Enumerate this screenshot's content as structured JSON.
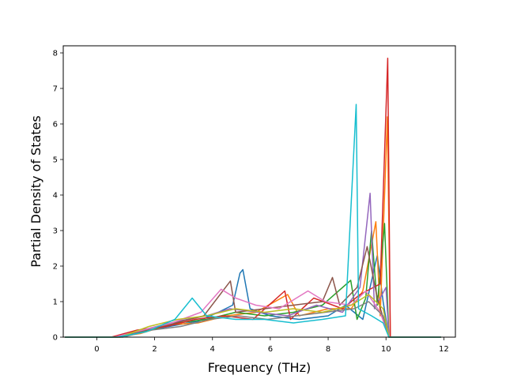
{
  "chart_data": {
    "type": "line",
    "title": "",
    "xlabel": "Frequency (THz)",
    "ylabel": "Partial Density of States",
    "xlim": [
      -1.16,
      12.4
    ],
    "ylim": [
      0,
      8.2
    ],
    "xticks": [
      0,
      2,
      4,
      6,
      8,
      10,
      12
    ],
    "yticks": [
      0,
      1,
      2,
      3,
      4,
      5,
      6,
      7,
      8
    ],
    "xtick_labels": [
      "0",
      "2",
      "4",
      "6",
      "8",
      "10",
      "12"
    ],
    "ytick_labels": [
      "0",
      "1",
      "2",
      "3",
      "4",
      "5",
      "6",
      "7",
      "8"
    ],
    "grid": false,
    "legend": "none",
    "series": [
      {
        "color": "#1f77b4",
        "points": [
          [
            -1.1,
            0
          ],
          [
            0.5,
            0
          ],
          [
            1.5,
            0.15
          ],
          [
            2.5,
            0.3
          ],
          [
            3.5,
            0.45
          ],
          [
            4.2,
            0.7
          ],
          [
            4.7,
            0.9
          ],
          [
            4.95,
            1.8
          ],
          [
            5.05,
            1.9
          ],
          [
            5.3,
            0.8
          ],
          [
            6.0,
            0.6
          ],
          [
            7.0,
            0.5
          ],
          [
            8.0,
            0.6
          ],
          [
            8.6,
            0.9
          ],
          [
            9.2,
            0.5
          ],
          [
            9.7,
            2.3
          ],
          [
            9.9,
            1.0
          ],
          [
            10.1,
            0
          ],
          [
            11.9,
            0
          ]
        ]
      },
      {
        "color": "#ff7f0e",
        "points": [
          [
            -1.1,
            0
          ],
          [
            0.6,
            0
          ],
          [
            1.5,
            0.1
          ],
          [
            2.5,
            0.35
          ],
          [
            3.5,
            0.4
          ],
          [
            4.5,
            0.6
          ],
          [
            5.5,
            0.7
          ],
          [
            6.6,
            1.2
          ],
          [
            7.0,
            0.6
          ],
          [
            8.0,
            0.8
          ],
          [
            8.8,
            0.8
          ],
          [
            9.2,
            1.3
          ],
          [
            9.65,
            3.25
          ],
          [
            9.8,
            0.6
          ],
          [
            10.05,
            6.2
          ],
          [
            10.15,
            0
          ],
          [
            11.9,
            0
          ]
        ]
      },
      {
        "color": "#2ca02c",
        "points": [
          [
            -1.1,
            0
          ],
          [
            0.7,
            0
          ],
          [
            1.8,
            0.2
          ],
          [
            2.8,
            0.4
          ],
          [
            3.8,
            0.5
          ],
          [
            4.8,
            0.7
          ],
          [
            5.8,
            0.6
          ],
          [
            6.8,
            0.7
          ],
          [
            7.8,
            0.9
          ],
          [
            8.78,
            1.6
          ],
          [
            9.0,
            0.5
          ],
          [
            9.3,
            1.1
          ],
          [
            9.5,
            3.0
          ],
          [
            9.7,
            0.9
          ],
          [
            9.95,
            3.2
          ],
          [
            10.1,
            0
          ],
          [
            11.9,
            0
          ]
        ]
      },
      {
        "color": "#d62728",
        "points": [
          [
            -1.1,
            0
          ],
          [
            0.5,
            0
          ],
          [
            1.4,
            0.2
          ],
          [
            2.4,
            0.3
          ],
          [
            3.4,
            0.5
          ],
          [
            4.4,
            0.6
          ],
          [
            5.4,
            0.5
          ],
          [
            6.5,
            1.3
          ],
          [
            6.7,
            0.5
          ],
          [
            7.5,
            1.1
          ],
          [
            8.5,
            0.8
          ],
          [
            9.1,
            1.2
          ],
          [
            9.8,
            1.5
          ],
          [
            10.06,
            7.85
          ],
          [
            10.15,
            0
          ],
          [
            11.9,
            0
          ]
        ]
      },
      {
        "color": "#9467bd",
        "points": [
          [
            -1.1,
            0
          ],
          [
            0.8,
            0
          ],
          [
            1.8,
            0.25
          ],
          [
            2.8,
            0.45
          ],
          [
            3.8,
            0.6
          ],
          [
            4.6,
            0.8
          ],
          [
            5.6,
            0.7
          ],
          [
            6.6,
            0.6
          ],
          [
            7.6,
            0.9
          ],
          [
            8.5,
            0.7
          ],
          [
            9.1,
            1.4
          ],
          [
            9.45,
            4.05
          ],
          [
            9.6,
            0.8
          ],
          [
            10.0,
            1.4
          ],
          [
            10.1,
            0
          ],
          [
            11.9,
            0
          ]
        ]
      },
      {
        "color": "#8c564b",
        "points": [
          [
            -1.1,
            0
          ],
          [
            0.7,
            0
          ],
          [
            1.7,
            0.2
          ],
          [
            2.7,
            0.4
          ],
          [
            3.7,
            0.6
          ],
          [
            4.62,
            1.58
          ],
          [
            4.8,
            0.7
          ],
          [
            5.8,
            0.8
          ],
          [
            6.8,
            0.9
          ],
          [
            7.8,
            1.0
          ],
          [
            8.15,
            1.68
          ],
          [
            8.4,
            0.9
          ],
          [
            9.0,
            1.4
          ],
          [
            9.35,
            2.55
          ],
          [
            9.7,
            1.1
          ],
          [
            10.1,
            0
          ],
          [
            11.9,
            0
          ]
        ]
      },
      {
        "color": "#e377c2",
        "points": [
          [
            -1.1,
            0
          ],
          [
            0.6,
            0
          ],
          [
            1.6,
            0.2
          ],
          [
            2.6,
            0.4
          ],
          [
            3.6,
            0.7
          ],
          [
            4.3,
            1.35
          ],
          [
            4.8,
            1.1
          ],
          [
            5.5,
            0.9
          ],
          [
            6.3,
            0.8
          ],
          [
            7.3,
            1.3
          ],
          [
            7.9,
            1.0
          ],
          [
            8.8,
            0.9
          ],
          [
            9.3,
            1.3
          ],
          [
            9.8,
            0.7
          ],
          [
            10.1,
            0
          ],
          [
            11.9,
            0
          ]
        ]
      },
      {
        "color": "#7f7f7f",
        "points": [
          [
            -1.1,
            0
          ],
          [
            0.9,
            0
          ],
          [
            1.9,
            0.2
          ],
          [
            2.9,
            0.3
          ],
          [
            3.9,
            0.5
          ],
          [
            4.9,
            0.6
          ],
          [
            5.9,
            0.5
          ],
          [
            6.9,
            0.6
          ],
          [
            7.9,
            0.7
          ],
          [
            8.9,
            0.8
          ],
          [
            9.4,
            1.0
          ],
          [
            9.9,
            0.6
          ],
          [
            10.1,
            0
          ],
          [
            11.9,
            0
          ]
        ]
      },
      {
        "color": "#bcbd22",
        "points": [
          [
            -1.1,
            0
          ],
          [
            0.8,
            0
          ],
          [
            1.8,
            0.3
          ],
          [
            2.8,
            0.5
          ],
          [
            3.8,
            0.6
          ],
          [
            4.8,
            0.8
          ],
          [
            5.8,
            0.7
          ],
          [
            6.8,
            0.8
          ],
          [
            7.8,
            0.7
          ],
          [
            8.8,
            0.9
          ],
          [
            9.4,
            1.2
          ],
          [
            9.9,
            0.8
          ],
          [
            10.1,
            0
          ],
          [
            11.9,
            0
          ]
        ]
      },
      {
        "color": "#17becf",
        "points": [
          [
            -1.1,
            0
          ],
          [
            0.7,
            0
          ],
          [
            1.7,
            0.15
          ],
          [
            2.7,
            0.5
          ],
          [
            3.3,
            1.1
          ],
          [
            3.8,
            0.6
          ],
          [
            4.8,
            0.5
          ],
          [
            5.8,
            0.5
          ],
          [
            6.8,
            0.4
          ],
          [
            7.8,
            0.5
          ],
          [
            8.6,
            0.6
          ],
          [
            8.97,
            6.55
          ],
          [
            9.05,
            0.8
          ],
          [
            9.5,
            0.6
          ],
          [
            9.9,
            0.4
          ],
          [
            10.1,
            0
          ],
          [
            11.9,
            0
          ]
        ]
      }
    ]
  }
}
